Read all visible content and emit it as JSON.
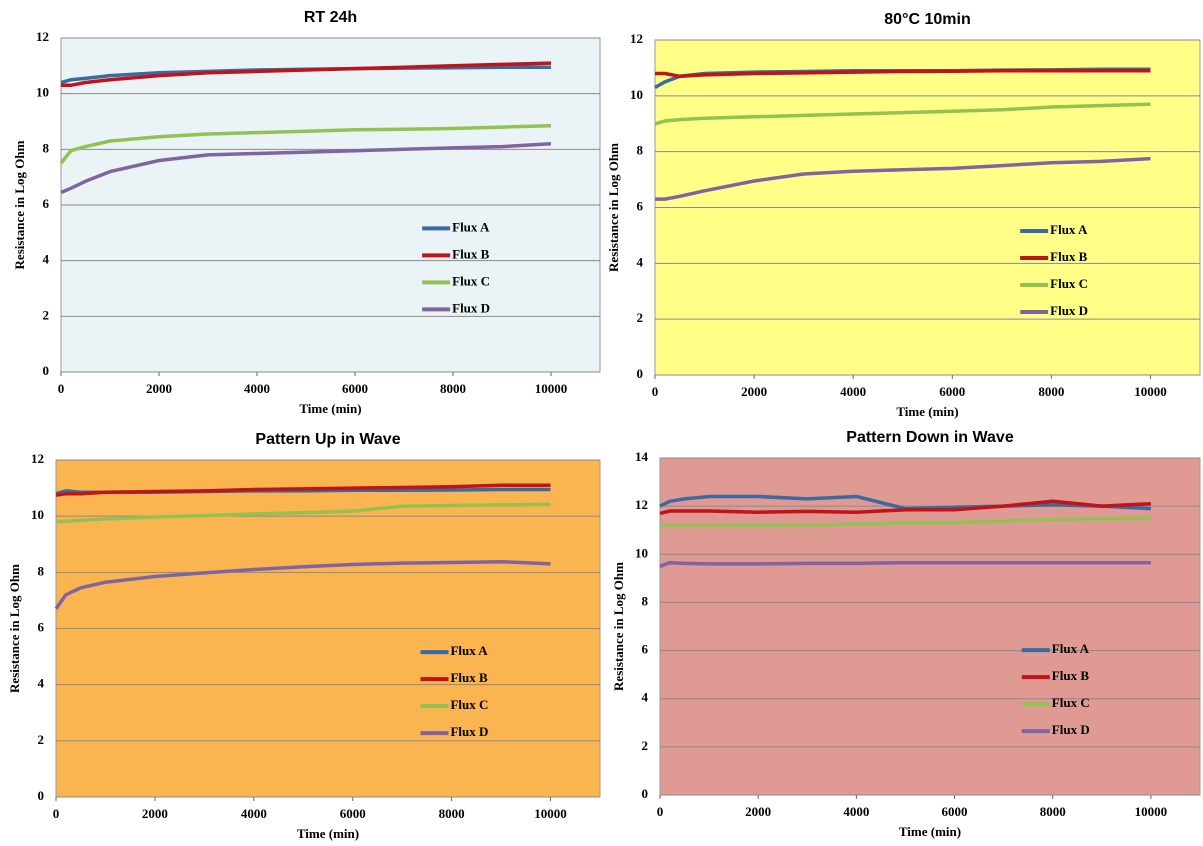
{
  "chart_data": [
    {
      "type": "line",
      "title": "RT 24h",
      "xlabel": "Time (min)",
      "ylabel": "Resistance in Log Ohm",
      "plot_background": "#eaf3f6",
      "grid": true,
      "legend": "right",
      "xlim": [
        0,
        11000
      ],
      "xticks": [
        0,
        2000,
        4000,
        6000,
        8000,
        10000
      ],
      "ylim": [
        0,
        12
      ],
      "yticks": [
        0,
        2,
        4,
        6,
        8,
        10,
        12
      ],
      "x": [
        0,
        200,
        500,
        1000,
        2000,
        3000,
        4000,
        5000,
        6000,
        7000,
        8000,
        9000,
        10000
      ],
      "series": [
        {
          "name": "Flux A",
          "color": "#3a6aa0",
          "values": [
            10.4,
            10.5,
            10.55,
            10.65,
            10.75,
            10.8,
            10.85,
            10.88,
            10.9,
            10.92,
            10.93,
            10.95,
            10.95
          ]
        },
        {
          "name": "Flux B",
          "color": "#c0141b",
          "values": [
            10.3,
            10.3,
            10.4,
            10.5,
            10.65,
            10.75,
            10.8,
            10.85,
            10.9,
            10.95,
            11.0,
            11.05,
            11.1
          ]
        },
        {
          "name": "Flux C",
          "color": "#93c152",
          "values": [
            7.5,
            7.95,
            8.1,
            8.3,
            8.45,
            8.55,
            8.6,
            8.65,
            8.7,
            8.72,
            8.75,
            8.8,
            8.85
          ]
        },
        {
          "name": "Flux D",
          "color": "#8064a2",
          "values": [
            6.45,
            6.6,
            6.85,
            7.2,
            7.6,
            7.8,
            7.85,
            7.9,
            7.95,
            8.0,
            8.05,
            8.1,
            8.2
          ]
        }
      ]
    },
    {
      "type": "line",
      "title": "80°C 10min",
      "xlabel": "Time (min)",
      "ylabel": "Resistance in Log Ohm",
      "plot_background": "#ffff88",
      "grid": true,
      "legend": "right",
      "xlim": [
        0,
        11000
      ],
      "xticks": [
        0,
        2000,
        4000,
        6000,
        8000,
        10000
      ],
      "ylim": [
        0,
        12
      ],
      "yticks": [
        0,
        2,
        4,
        6,
        8,
        10,
        12
      ],
      "x": [
        0,
        200,
        500,
        1000,
        2000,
        3000,
        4000,
        5000,
        6000,
        7000,
        8000,
        9000,
        10000
      ],
      "series": [
        {
          "name": "Flux A",
          "color": "#3a6aa0",
          "values": [
            10.3,
            10.5,
            10.7,
            10.8,
            10.85,
            10.87,
            10.9,
            10.9,
            10.9,
            10.92,
            10.93,
            10.95,
            10.95
          ]
        },
        {
          "name": "Flux B",
          "color": "#c0141b",
          "values": [
            10.8,
            10.8,
            10.7,
            10.75,
            10.8,
            10.82,
            10.85,
            10.87,
            10.88,
            10.9,
            10.9,
            10.9,
            10.9
          ]
        },
        {
          "name": "Flux C",
          "color": "#93c152",
          "values": [
            9.0,
            9.1,
            9.15,
            9.2,
            9.25,
            9.3,
            9.35,
            9.4,
            9.45,
            9.5,
            9.6,
            9.65,
            9.7
          ]
        },
        {
          "name": "Flux D",
          "color": "#8064a2",
          "values": [
            6.3,
            6.3,
            6.4,
            6.6,
            6.95,
            7.2,
            7.3,
            7.35,
            7.4,
            7.5,
            7.6,
            7.65,
            7.75
          ]
        }
      ]
    },
    {
      "type": "line",
      "title": "Pattern Up in Wave",
      "xlabel": "Time (min)",
      "ylabel": "Resistance in Log Ohm",
      "plot_background": "#fbb550",
      "grid": true,
      "legend": "right",
      "xlim": [
        0,
        11000
      ],
      "xticks": [
        0,
        2000,
        4000,
        6000,
        8000,
        10000
      ],
      "ylim": [
        0,
        12
      ],
      "yticks": [
        0,
        2,
        4,
        6,
        8,
        10,
        12
      ],
      "x": [
        0,
        200,
        500,
        1000,
        2000,
        3000,
        4000,
        5000,
        6000,
        7000,
        8000,
        9000,
        10000
      ],
      "series": [
        {
          "name": "Flux A",
          "color": "#3a6aa0",
          "values": [
            10.8,
            10.9,
            10.85,
            10.85,
            10.85,
            10.88,
            10.9,
            10.9,
            10.92,
            10.92,
            10.93,
            10.95,
            10.95
          ]
        },
        {
          "name": "Flux B",
          "color": "#c0141b",
          "values": [
            10.75,
            10.8,
            10.8,
            10.85,
            10.88,
            10.9,
            10.95,
            10.97,
            11.0,
            11.02,
            11.05,
            11.1,
            11.1
          ]
        },
        {
          "name": "Flux C",
          "color": "#93c152",
          "values": [
            9.8,
            9.82,
            9.85,
            9.9,
            9.97,
            10.02,
            10.08,
            10.12,
            10.18,
            10.35,
            10.38,
            10.4,
            10.42
          ]
        },
        {
          "name": "Flux D",
          "color": "#8064a2",
          "values": [
            6.7,
            7.2,
            7.45,
            7.65,
            7.85,
            7.98,
            8.1,
            8.2,
            8.28,
            8.33,
            8.35,
            8.38,
            8.3
          ]
        }
      ]
    },
    {
      "type": "line",
      "title": "Pattern Down in Wave",
      "xlabel": "Time (min)",
      "ylabel": "Resistance in Log Ohm",
      "plot_background": "#e09a94",
      "grid": true,
      "legend": "right",
      "xlim": [
        0,
        11000
      ],
      "xticks": [
        0,
        2000,
        4000,
        6000,
        8000,
        10000
      ],
      "ylim": [
        0,
        14
      ],
      "yticks": [
        0,
        2,
        4,
        6,
        8,
        10,
        12,
        14
      ],
      "x": [
        0,
        200,
        500,
        1000,
        2000,
        3000,
        4000,
        5000,
        6000,
        7000,
        8000,
        9000,
        10000
      ],
      "series": [
        {
          "name": "Flux A",
          "color": "#3a6aa0",
          "values": [
            12.0,
            12.2,
            12.3,
            12.4,
            12.4,
            12.3,
            12.4,
            11.9,
            11.95,
            12.0,
            12.05,
            12.0,
            11.9
          ]
        },
        {
          "name": "Flux B",
          "color": "#c0141b",
          "values": [
            11.7,
            11.8,
            11.8,
            11.8,
            11.75,
            11.78,
            11.75,
            11.85,
            11.85,
            12.0,
            12.2,
            12.0,
            12.1
          ]
        },
        {
          "name": "Flux C",
          "color": "#93c152",
          "values": [
            11.2,
            11.2,
            11.2,
            11.2,
            11.2,
            11.22,
            11.25,
            11.3,
            11.32,
            11.38,
            11.45,
            11.48,
            11.5
          ]
        },
        {
          "name": "Flux D",
          "color": "#8064a2",
          "values": [
            9.5,
            9.65,
            9.62,
            9.6,
            9.6,
            9.62,
            9.62,
            9.65,
            9.65,
            9.65,
            9.65,
            9.65,
            9.65
          ]
        }
      ]
    }
  ]
}
